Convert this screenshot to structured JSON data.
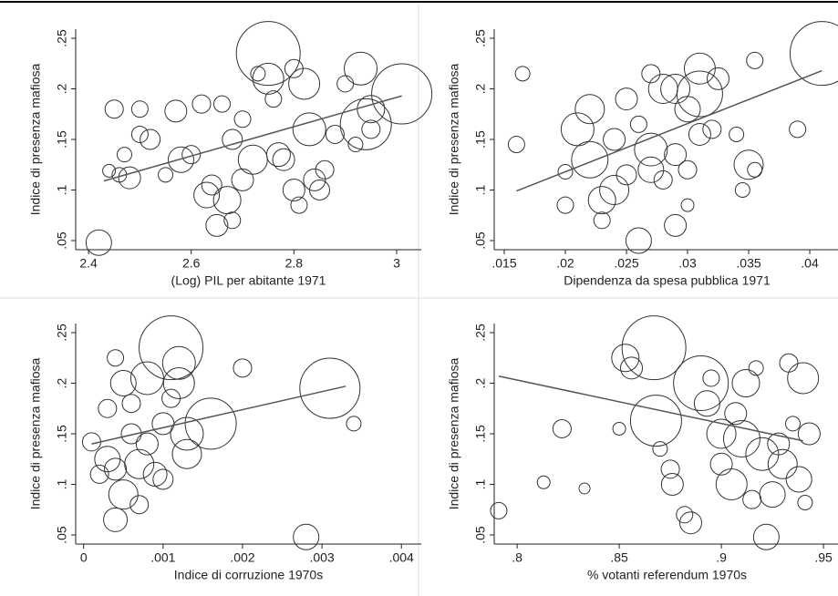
{
  "chart_data": [
    {
      "type": "bubble",
      "color": "#333333",
      "fit_color": "#555555",
      "xlabel": "(Log) PIL per abitante 1971",
      "ylabel": "Indice di presenza mafiosa",
      "xlim": [
        2.375,
        3.048
      ],
      "ylim": [
        0.041,
        0.259
      ],
      "xticks": [
        2.4,
        2.6,
        2.8,
        3
      ],
      "yticks": [
        {
          "value": 0.05,
          "label": ".05"
        },
        {
          "value": 0.1,
          "label": ".1"
        },
        {
          "value": 0.15,
          "label": ".15"
        },
        {
          "value": 0.2,
          "label": ".2"
        },
        {
          "value": 0.25,
          "label": ".25"
        }
      ],
      "x": [
        2.42,
        2.44,
        2.45,
        2.46,
        2.47,
        2.48,
        2.5,
        2.5,
        2.52,
        2.55,
        2.57,
        2.58,
        2.6,
        2.62,
        2.63,
        2.64,
        2.65,
        2.66,
        2.67,
        2.68,
        2.68,
        2.7,
        2.7,
        2.72,
        2.73,
        2.75,
        2.75,
        2.76,
        2.77,
        2.78,
        2.8,
        2.8,
        2.81,
        2.82,
        2.83,
        2.84,
        2.85,
        2.86,
        2.88,
        2.9,
        2.92,
        2.93,
        2.94,
        2.95,
        2.95,
        3.01
      ],
      "values": [
        0.048,
        0.119,
        0.18,
        0.115,
        0.135,
        0.112,
        0.18,
        0.155,
        0.15,
        0.115,
        0.178,
        0.13,
        0.135,
        0.185,
        0.095,
        0.105,
        0.065,
        0.185,
        0.09,
        0.07,
        0.15,
        0.11,
        0.17,
        0.13,
        0.215,
        0.235,
        0.21,
        0.19,
        0.135,
        0.13,
        0.22,
        0.1,
        0.085,
        0.205,
        0.16,
        0.11,
        0.1,
        0.12,
        0.155,
        0.205,
        0.145,
        0.22,
        0.165,
        0.18,
        0.16,
        0.195
      ],
      "sizes": [
        14,
        7,
        10,
        8,
        8,
        12,
        9,
        9,
        11,
        8,
        12,
        14,
        10,
        10,
        14,
        11,
        12,
        9,
        15,
        9,
        11,
        12,
        9,
        16,
        8,
        35,
        17,
        9,
        13,
        12,
        10,
        12,
        9,
        17,
        18,
        12,
        11,
        10,
        10,
        9,
        8,
        18,
        28,
        15,
        10,
        33
      ],
      "fit": {
        "x": [
          2.43,
          3.01
        ],
        "y": [
          0.109,
          0.193
        ]
      }
    },
    {
      "type": "bubble",
      "color": "#333333",
      "fit_color": "#555555",
      "xlabel": "Dipendenza da spesa pubblica 1971",
      "ylabel": "Indice di presenza mafiosa",
      "xlim": [
        0.01418,
        0.04246
      ],
      "ylim": [
        0.041,
        0.259
      ],
      "xticks": [
        {
          "value": 0.015,
          "label": ".015"
        },
        {
          "value": 0.02,
          "label": ".02"
        },
        {
          "value": 0.025,
          "label": ".025"
        },
        {
          "value": 0.03,
          "label": ".03"
        },
        {
          "value": 0.035,
          "label": ".035"
        },
        {
          "value": 0.04,
          "label": ".04"
        }
      ],
      "yticks": [
        {
          "value": 0.05,
          "label": ".05"
        },
        {
          "value": 0.1,
          "label": ".1"
        },
        {
          "value": 0.15,
          "label": ".15"
        },
        {
          "value": 0.2,
          "label": ".2"
        },
        {
          "value": 0.25,
          "label": ".25"
        }
      ],
      "x": [
        0.016,
        0.0165,
        0.02,
        0.02,
        0.021,
        0.022,
        0.022,
        0.023,
        0.023,
        0.024,
        0.024,
        0.025,
        0.025,
        0.026,
        0.026,
        0.027,
        0.027,
        0.027,
        0.028,
        0.028,
        0.029,
        0.029,
        0.029,
        0.03,
        0.03,
        0.03,
        0.031,
        0.031,
        0.031,
        0.032,
        0.0325,
        0.034,
        0.0345,
        0.035,
        0.0355,
        0.0355,
        0.039,
        0.041
      ],
      "values": [
        0.145,
        0.215,
        0.118,
        0.085,
        0.16,
        0.18,
        0.13,
        0.09,
        0.07,
        0.15,
        0.1,
        0.19,
        0.115,
        0.05,
        0.165,
        0.12,
        0.14,
        0.215,
        0.2,
        0.11,
        0.135,
        0.065,
        0.2,
        0.18,
        0.085,
        0.12,
        0.195,
        0.155,
        0.22,
        0.16,
        0.21,
        0.155,
        0.1,
        0.125,
        0.228,
        0.12,
        0.16,
        0.235
      ],
      "sizes": [
        9,
        8,
        8,
        9,
        18,
        16,
        20,
        15,
        9,
        12,
        16,
        12,
        11,
        14,
        9,
        14,
        18,
        10,
        16,
        10,
        12,
        12,
        16,
        14,
        7,
        10,
        25,
        12,
        17,
        10,
        12,
        8,
        8,
        16,
        9,
        8,
        9,
        35
      ],
      "fit": {
        "x": [
          0.016,
          0.041
        ],
        "y": [
          0.099,
          0.218
        ]
      }
    },
    {
      "type": "bubble",
      "color": "#333333",
      "fit_color": "#555555",
      "xlabel": "Indice di corruzione 1970s",
      "ylabel": "Indice di presenza mafiosa",
      "xlim": [
        -0.0001,
        0.00425
      ],
      "ylim": [
        0.041,
        0.259
      ],
      "xticks": [
        0,
        {
          "value": 0.001,
          "label": ".001"
        },
        {
          "value": 0.002,
          "label": ".002"
        },
        {
          "value": 0.003,
          "label": ".003"
        },
        {
          "value": 0.004,
          "label": ".004"
        }
      ],
      "yticks": [
        {
          "value": 0.05,
          "label": ".05"
        },
        {
          "value": 0.1,
          "label": ".1"
        },
        {
          "value": 0.15,
          "label": ".15"
        },
        {
          "value": 0.2,
          "label": ".2"
        },
        {
          "value": 0.25,
          "label": ".25"
        }
      ],
      "x": [
        0.0001,
        0.0002,
        0.0003,
        0.0003,
        0.0004,
        0.0004,
        0.0004,
        0.0005,
        0.0005,
        0.0006,
        0.0006,
        0.0007,
        0.0007,
        0.0008,
        0.0008,
        0.0009,
        0.001,
        0.001,
        0.0011,
        0.0011,
        0.0012,
        0.0012,
        0.0013,
        0.0013,
        0.0016,
        0.002,
        0.0028,
        0.0031,
        0.0034
      ],
      "values": [
        0.142,
        0.11,
        0.175,
        0.125,
        0.225,
        0.115,
        0.065,
        0.2,
        0.09,
        0.15,
        0.18,
        0.12,
        0.08,
        0.205,
        0.14,
        0.11,
        0.16,
        0.105,
        0.235,
        0.185,
        0.22,
        0.2,
        0.15,
        0.13,
        0.16,
        0.215,
        0.048,
        0.195,
        0.16
      ],
      "sizes": [
        10,
        10,
        10,
        14,
        9,
        12,
        13,
        14,
        16,
        11,
        10,
        16,
        10,
        18,
        12,
        13,
        12,
        11,
        35,
        10,
        18,
        17,
        18,
        16,
        28,
        10,
        14,
        33,
        8
      ],
      "fit": {
        "x": [
          0.0001,
          0.0033
        ],
        "y": [
          0.14,
          0.197
        ]
      }
    },
    {
      "type": "bubble",
      "color": "#333333",
      "fit_color": "#555555",
      "xlabel": "% votanti referendum 1970s",
      "ylabel": "Indice di presenza mafiosa",
      "xlim": [
        0.7888,
        0.958
      ],
      "ylim": [
        0.041,
        0.259
      ],
      "xticks": [
        {
          "value": 0.8,
          "label": ".8"
        },
        {
          "value": 0.85,
          "label": ".85"
        },
        {
          "value": 0.9,
          "label": ".9"
        },
        {
          "value": 0.95,
          "label": ".95"
        }
      ],
      "yticks": [
        {
          "value": 0.05,
          "label": ".05"
        },
        {
          "value": 0.1,
          "label": ".1"
        },
        {
          "value": 0.15,
          "label": ".15"
        },
        {
          "value": 0.2,
          "label": ".2"
        },
        {
          "value": 0.25,
          "label": ".25"
        }
      ],
      "x": [
        0.791,
        0.813,
        0.822,
        0.833,
        0.85,
        0.853,
        0.856,
        0.867,
        0.868,
        0.87,
        0.875,
        0.876,
        0.882,
        0.885,
        0.89,
        0.893,
        0.895,
        0.9,
        0.9,
        0.905,
        0.907,
        0.91,
        0.912,
        0.915,
        0.917,
        0.92,
        0.922,
        0.925,
        0.928,
        0.93,
        0.933,
        0.935,
        0.938,
        0.94,
        0.941,
        0.943
      ],
      "values": [
        0.074,
        0.102,
        0.155,
        0.096,
        0.155,
        0.225,
        0.215,
        0.235,
        0.163,
        0.135,
        0.115,
        0.1,
        0.07,
        0.062,
        0.2,
        0.18,
        0.205,
        0.15,
        0.12,
        0.1,
        0.17,
        0.145,
        0.2,
        0.085,
        0.215,
        0.13,
        0.048,
        0.09,
        0.14,
        0.12,
        0.22,
        0.16,
        0.105,
        0.205,
        0.082,
        0.15
      ],
      "sizes": [
        9,
        7,
        10,
        6,
        7,
        15,
        12,
        35,
        28,
        8,
        10,
        12,
        9,
        12,
        30,
        14,
        9,
        16,
        12,
        17,
        12,
        20,
        15,
        10,
        8,
        18,
        14,
        14,
        12,
        16,
        10,
        8,
        14,
        17,
        8,
        12
      ],
      "fit": {
        "x": [
          0.791,
          0.94
        ],
        "y": [
          0.207,
          0.143
        ]
      }
    }
  ]
}
